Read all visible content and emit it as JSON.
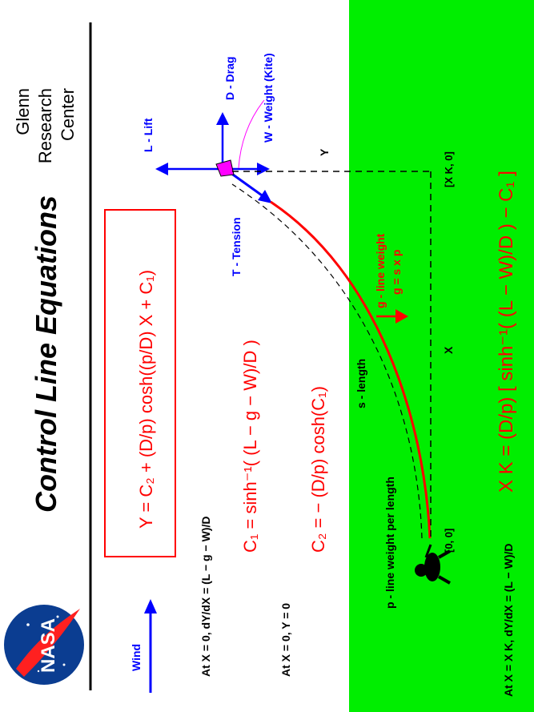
{
  "colors": {
    "field": "#00ee00",
    "red": "#ff0000",
    "blue": "#0000ff",
    "black": "#000000",
    "magenta": "#ff00ff",
    "nasa_blue": "#0b3d91"
  },
  "header": {
    "title": "Control  Line  Equations",
    "org_line1": "Glenn",
    "org_line2": "Research",
    "org_line3": "Center"
  },
  "logo": {
    "text": "NASA"
  },
  "forces": {
    "lift": "L - Lift",
    "drag": "D - Drag",
    "weight": "W - Weight (Kite)",
    "tension": "T - Tension",
    "wind": "Wind"
  },
  "labels": {
    "y": "Y",
    "x": "X",
    "origin": "[0, 0]",
    "xk_point": "[X K, 0]",
    "s_length": "s - length",
    "p_desc": "p - line  weight per length",
    "g_desc": "g - line weight",
    "g_formula": "g = s  x  p"
  },
  "equations": {
    "y_eq": "Y = C₂ + (D/p) cosh((p/D) X + C₁)",
    "c1_eq": "C₁ = sinh⁻¹( (L − g − W)/D )",
    "c2_eq": "C₂ = − (D/p) cosh(C₁)",
    "xk_eq": "X K = (D/p) [ sinh⁻¹( (L − W)/D ) − C₁ ]"
  },
  "conditions": {
    "cond1": "At X = 0,  dY/dX = (L − g − W)/D",
    "cond2": "At X = 0,  Y = 0",
    "cond3": "At X = X K,  dY/dX = (L − W)/D"
  }
}
